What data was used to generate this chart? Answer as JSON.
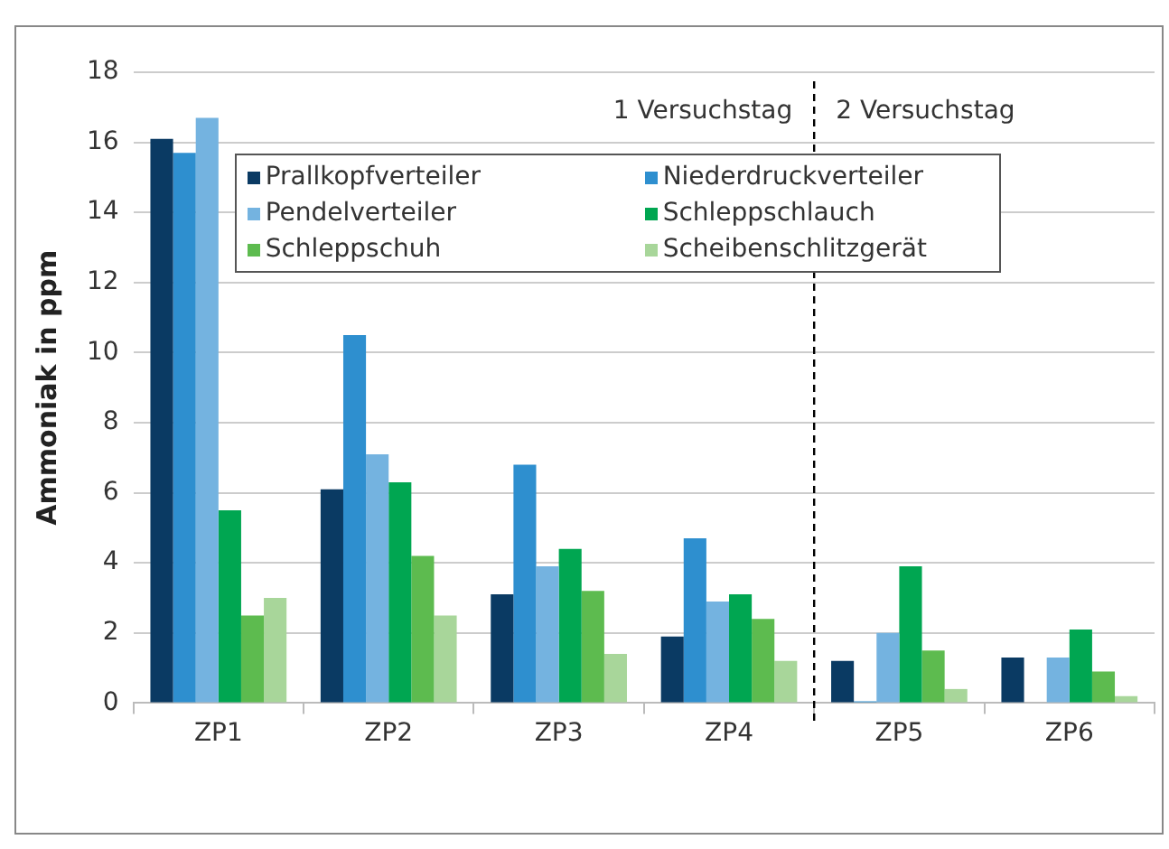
{
  "chart_data": {
    "type": "bar",
    "ylabel": "Ammoniak in ppm",
    "categories": [
      "ZP1",
      "ZP2",
      "ZP3",
      "ZP4",
      "ZP5",
      "ZP6"
    ],
    "series": [
      {
        "name": "Prallkopfverteiler",
        "color": "#0a3a63",
        "values": [
          16.1,
          6.1,
          3.1,
          1.9,
          1.2,
          1.3
        ]
      },
      {
        "name": "Niederdruckverteiler",
        "color": "#2e8fcf",
        "values": [
          15.7,
          10.5,
          6.8,
          4.7,
          0.05,
          null
        ]
      },
      {
        "name": "Pendelverteiler",
        "color": "#74b3e0",
        "values": [
          16.7,
          7.1,
          3.9,
          2.9,
          2.0,
          1.3
        ]
      },
      {
        "name": "Schleppschlauch",
        "color": "#00a651",
        "values": [
          5.5,
          6.3,
          4.4,
          3.1,
          3.9,
          2.1
        ]
      },
      {
        "name": "Schleppschuh",
        "color": "#5dbb4f",
        "values": [
          2.5,
          4.2,
          3.2,
          2.4,
          1.5,
          0.9
        ]
      },
      {
        "name": "Scheibenschlitzgerät",
        "color": "#a8d69a",
        "values": [
          3.0,
          2.5,
          1.4,
          1.2,
          0.4,
          0.2
        ]
      }
    ],
    "ref_lines": [
      {
        "axis": "x",
        "value": "ZP5",
        "line_style": "dashed",
        "color": "#000000"
      }
    ],
    "ylim": [
      0,
      18
    ],
    "yticks": [
      0,
      2,
      4,
      6,
      8,
      10,
      12,
      14,
      16,
      18
    ],
    "grid": "y",
    "legend": "top",
    "annotations": [
      "1 Versuchstag",
      "2 Versuchstag"
    ]
  }
}
